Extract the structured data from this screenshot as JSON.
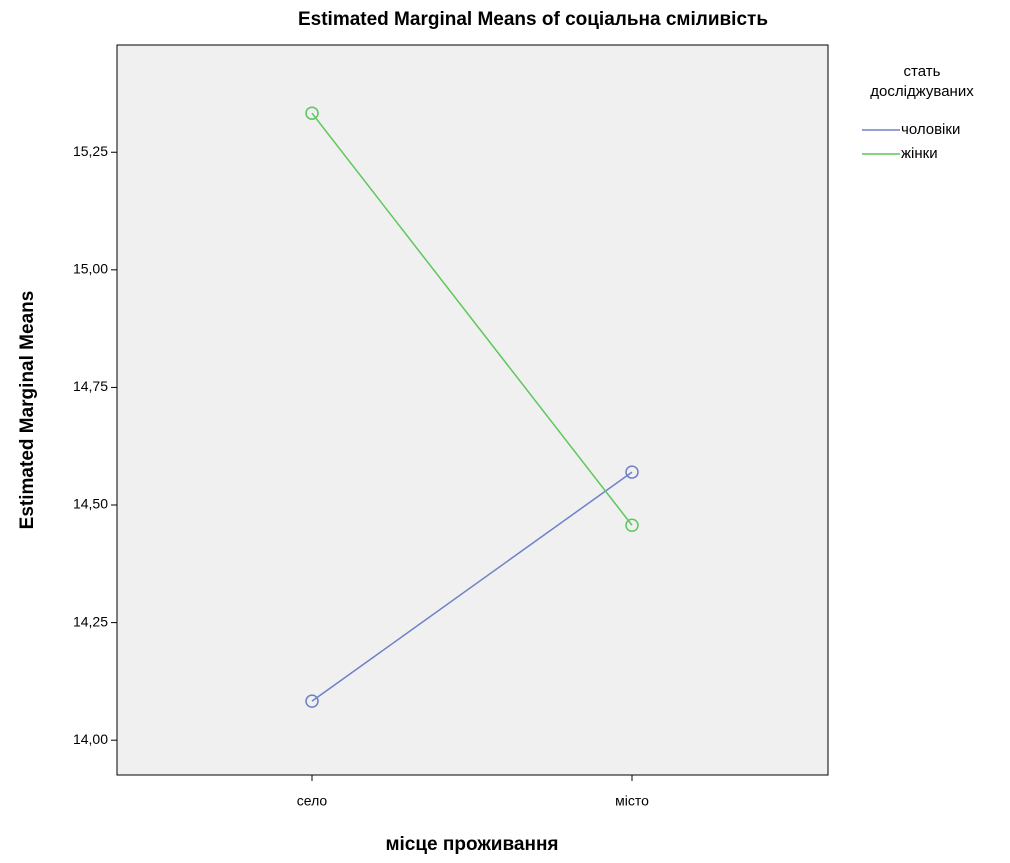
{
  "chart_data": {
    "type": "line",
    "title": "Estimated Marginal Means of соціальна сміливість",
    "x_label": "місце проживання",
    "y_label": "Estimated Marginal Means",
    "legend_title": [
      "стать",
      "досліджуваних"
    ],
    "legend_position": "right",
    "categories": [
      "село",
      "місто"
    ],
    "series": [
      {
        "name": "чоловіки",
        "color": "#6f80c8",
        "values": [
          14.083,
          14.57
        ]
      },
      {
        "name": "жінки",
        "color": "#5cc85c",
        "values": [
          15.333,
          14.457
        ]
      }
    ],
    "ylim": [
      13.926,
      15.478
    ],
    "yticks": [
      {
        "value": 14.0,
        "label": "14,00"
      },
      {
        "value": 14.25,
        "label": "14,25"
      },
      {
        "value": 14.5,
        "label": "14,50"
      },
      {
        "value": 14.75,
        "label": "14,75"
      },
      {
        "value": 15.0,
        "label": "15,00"
      },
      {
        "value": 15.25,
        "label": "15,25"
      }
    ]
  }
}
